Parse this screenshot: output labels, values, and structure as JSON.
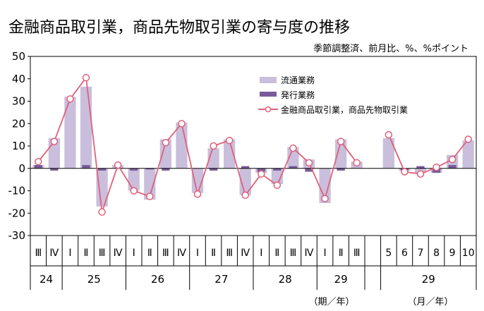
{
  "chart_data": {
    "type": "bar",
    "title": "金融商品取引業，商品先物取引業の寄与度の推移",
    "subtitle": "季節調整済、前月比、%、%ポイント",
    "ylim": [
      -30,
      50
    ],
    "yticks": [
      -30,
      -20,
      -10,
      0,
      10,
      20,
      30,
      40,
      50
    ],
    "legend": {
      "placement": "top-center",
      "entries": [
        "流通業務",
        "発行業務",
        "金融商品取引業，商品先物取引業"
      ]
    },
    "colors": {
      "distribution": "#c9bfdc",
      "issuance": "#7a5c9a",
      "line": "#e0607a"
    },
    "categories": [
      "Ⅲ",
      "Ⅳ",
      "Ⅰ",
      "Ⅱ",
      "Ⅲ",
      "Ⅳ",
      "Ⅰ",
      "Ⅱ",
      "Ⅲ",
      "Ⅳ",
      "Ⅰ",
      "Ⅱ",
      "Ⅲ",
      "Ⅳ",
      "Ⅰ",
      "Ⅱ",
      "Ⅲ",
      "Ⅳ",
      "Ⅰ",
      "Ⅱ",
      "Ⅲ",
      "",
      "5",
      "6",
      "7",
      "8",
      "9",
      "10"
    ],
    "year_labels": [
      {
        "label": "24",
        "start": 0,
        "end": 1
      },
      {
        "label": "25",
        "start": 2,
        "end": 5
      },
      {
        "label": "26",
        "start": 6,
        "end": 9
      },
      {
        "label": "27",
        "start": 10,
        "end": 13
      },
      {
        "label": "28",
        "start": 14,
        "end": 17
      },
      {
        "label": "29",
        "start": 18,
        "end": 20
      },
      {
        "label": "29",
        "start": 22,
        "end": 27
      }
    ],
    "period_label_quarter": "（期／年）",
    "period_label_month": "（月／年）",
    "series": [
      {
        "name": "流通業務",
        "values": [
          1.5,
          13.5,
          32,
          36.5,
          -17,
          1.5,
          -10,
          -14,
          13,
          20.5,
          -11,
          9,
          13,
          -12,
          -2,
          -7,
          9.5,
          4,
          -15.5,
          13,
          3,
          null,
          13.5,
          -1,
          -2,
          -2,
          6,
          12.5
        ]
      },
      {
        "name": "発行業務",
        "values": [
          1.5,
          -1,
          0,
          1.5,
          -1,
          0,
          -1,
          -0.5,
          -1,
          0,
          0,
          -1,
          0,
          1,
          -1.5,
          -1,
          1,
          -1.5,
          0,
          -1,
          0,
          null,
          0,
          -1,
          1,
          -2,
          1.5,
          0
        ]
      },
      {
        "name": "金融商品取引業，商品先物取引業",
        "values": [
          3,
          12,
          31,
          40.5,
          -19.5,
          1.5,
          -10,
          -12.5,
          11.5,
          20,
          -11.5,
          10,
          12.5,
          -12,
          -2.5,
          -7.5,
          9,
          2.5,
          -13.5,
          12,
          2.5,
          null,
          15,
          -1.5,
          -2.5,
          0.5,
          4,
          13
        ]
      }
    ]
  }
}
